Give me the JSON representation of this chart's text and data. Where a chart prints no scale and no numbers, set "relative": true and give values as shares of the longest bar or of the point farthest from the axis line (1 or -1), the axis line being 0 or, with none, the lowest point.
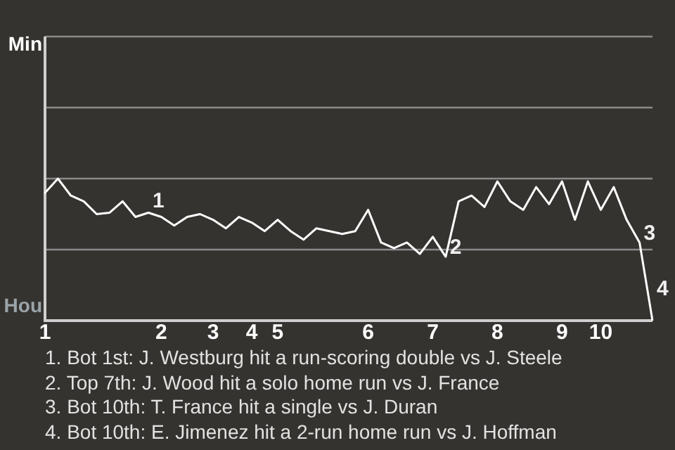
{
  "chart_data": {
    "type": "line",
    "relative": true,
    "categories": [
      "1",
      null,
      null,
      null,
      null,
      null,
      null,
      null,
      null,
      "2",
      null,
      null,
      null,
      "3",
      null,
      null,
      "4",
      null,
      "5",
      null,
      null,
      null,
      null,
      null,
      null,
      "6",
      null,
      null,
      null,
      null,
      "7",
      null,
      null,
      null,
      null,
      "8",
      null,
      null,
      null,
      null,
      "9",
      null,
      null,
      "10",
      null,
      null,
      null,
      null
    ],
    "series": [
      {
        "color": "#ffffff",
        "values": [
          0.9,
          1,
          0.88,
          0.84,
          0.75,
          0.76,
          0.84,
          0.73,
          0.76,
          0.73,
          0.67,
          0.73,
          0.75,
          0.71,
          0.65,
          0.73,
          0.69,
          0.63,
          0.71,
          0.63,
          0.57,
          0.65,
          0.63,
          0.61,
          0.63,
          0.78,
          0.55,
          0.51,
          0.55,
          0.47,
          0.59,
          0.45,
          0.84,
          0.88,
          0.8,
          0.98,
          0.84,
          0.78,
          0.94,
          0.82,
          0.98,
          0.71,
          0.98,
          0.78,
          0.94,
          0.71,
          0.55,
          0
        ]
      }
    ],
    "legend": false,
    "marker": "none",
    "line_style": "solid",
    "ref_lines": [
      {
        "axis": "y",
        "value": 0.5,
        "color": "#8a8a8a"
      },
      {
        "axis": "y",
        "value": 1,
        "color": "#8a8a8a"
      },
      {
        "axis": "y",
        "value": 1.5,
        "color": "#8a8a8a"
      },
      {
        "axis": "y",
        "value": 2,
        "color": "#8a8a8a"
      }
    ],
    "annotations": [
      "Min",
      "Hou",
      "1",
      "2",
      "3",
      "4",
      "1. Bot 1st: J. Westburg hit a run-scoring double vs J. Steele",
      "2. Top 7th: J. Wood hit a solo home run vs J. France",
      "3. Bot 10th: T. France hit a single vs J. Duran",
      "4. Bot 10th: E. Jimenez hit a 2-run home run vs J. Hoffman"
    ]
  }
}
